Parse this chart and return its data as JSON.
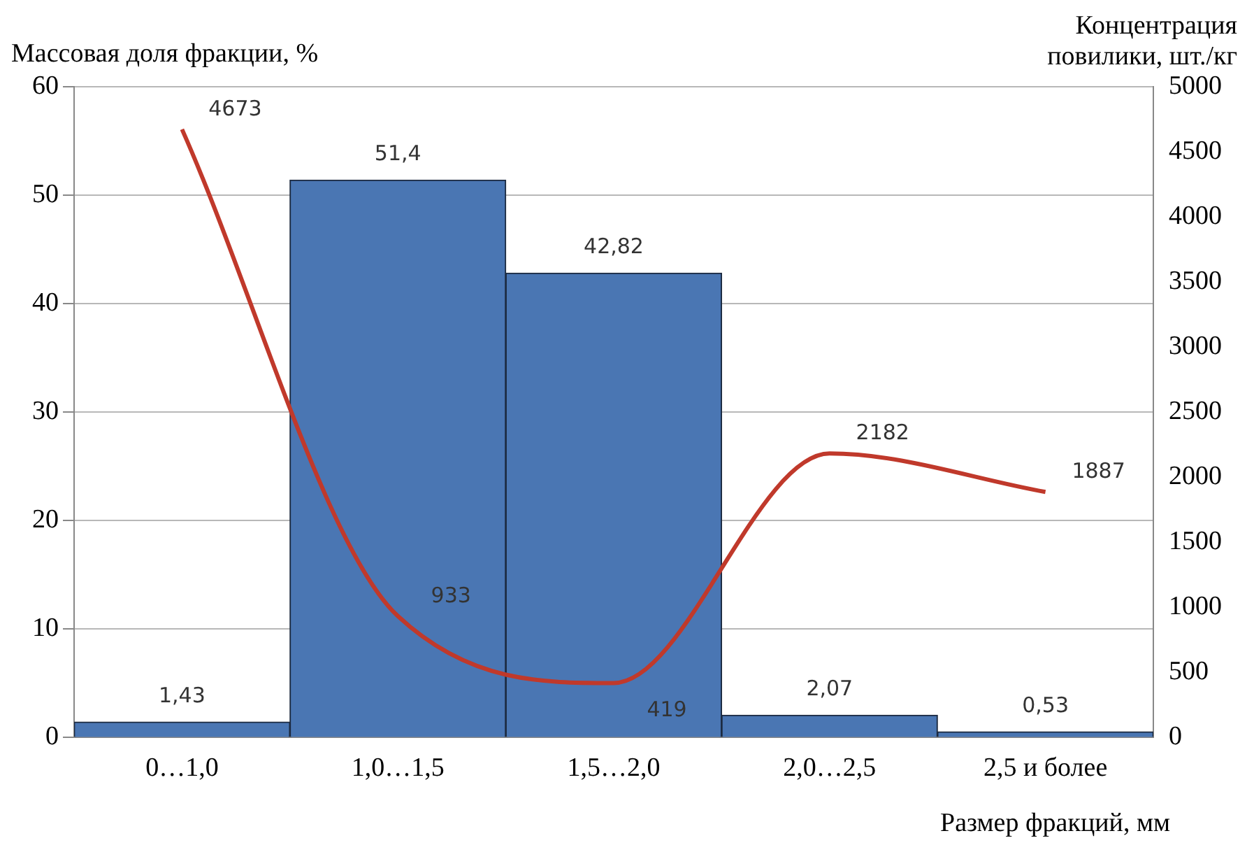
{
  "chart_data": {
    "type": "bar",
    "xlabel": "Размер фракций, мм",
    "ylabel": "Массовая доля фракции, %",
    "y2label": "Концентрация повилики, шт./кг",
    "categories": [
      "0…1,0",
      "1,0…1,5",
      "1,5…2,0",
      "2,0…2,5",
      "2,5 и более"
    ],
    "series": [
      {
        "color": "#4a76b3",
        "values": [
          1.43,
          51.4,
          42.82,
          2.07,
          0.53
        ],
        "value_labels": [
          "1,43",
          "51,4",
          "42,82",
          "2,07",
          "0,53"
        ]
      },
      {
        "type": "line",
        "axis": "y2",
        "color": "#c0392b",
        "values": [
          4673,
          933,
          419,
          2182,
          1887
        ],
        "value_labels": [
          "4673",
          "933",
          "419",
          "2182",
          "1887"
        ]
      }
    ],
    "ylim": [
      0,
      60
    ],
    "yticks": [
      0,
      10,
      20,
      30,
      40,
      50,
      60
    ],
    "y2lim": [
      0,
      5000
    ],
    "y2ticks": [
      0,
      500,
      1000,
      1500,
      2000,
      2500,
      3000,
      3500,
      4000,
      4500,
      5000
    ],
    "grid": "y",
    "legend": false,
    "marker": "none",
    "line_style": "solid"
  }
}
